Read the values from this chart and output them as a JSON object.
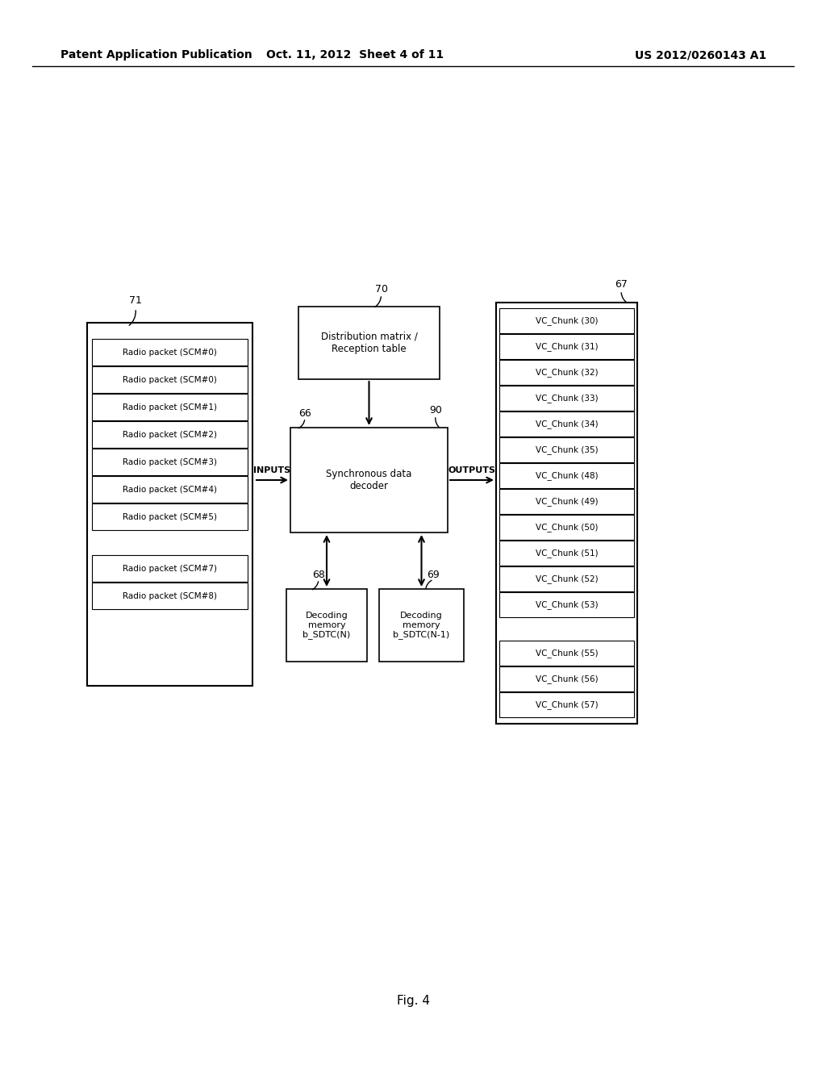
{
  "bg_color": "#ffffff",
  "header_left": "Patent Application Publication",
  "header_mid": "Oct. 11, 2012  Sheet 4 of 11",
  "header_right": "US 2012/0260143 A1",
  "fig_label": "Fig. 4",
  "radio_packets_group1": [
    "Radio packet (SCM#0)",
    "Radio packet (SCM#0)",
    "Radio packet (SCM#1)",
    "Radio packet (SCM#2)",
    "Radio packet (SCM#3)",
    "Radio packet (SCM#4)",
    "Radio packet (SCM#5)"
  ],
  "radio_packets_group2": [
    "Radio packet (SCM#7)",
    "Radio packet (SCM#8)"
  ],
  "label_71": "71",
  "dist_matrix_text": "Distribution matrix /\nReception table",
  "label_70": "70",
  "decoder_text": "Synchronous data\ndecoder",
  "label_66": "66",
  "label_90": "90",
  "label_inputs": "INPUTS",
  "label_outputs": "OUTPUTS",
  "mem1_text": "Decoding\nmemory\nb_SDTC(N)",
  "label_68": "68",
  "mem2_text": "Decoding\nmemory\nb_SDTC(N-1)",
  "label_69": "69",
  "vc_chunks_group1": [
    "VC_Chunk (30)",
    "VC_Chunk (31)",
    "VC_Chunk (32)",
    "VC_Chunk (33)",
    "VC_Chunk (34)",
    "VC_Chunk (35)",
    "VC_Chunk (48)",
    "VC_Chunk (49)",
    "VC_Chunk (50)",
    "VC_Chunk (51)",
    "VC_Chunk (52)",
    "VC_Chunk (53)"
  ],
  "vc_chunks_group2": [
    "VC_Chunk (55)",
    "VC_Chunk (56)",
    "VC_Chunk (57)"
  ],
  "label_67": "67",
  "text_color": "#000000",
  "box_edge_color": "#000000",
  "box_fill_color": "#ffffff",
  "gray_fill": "#d0d0d0"
}
